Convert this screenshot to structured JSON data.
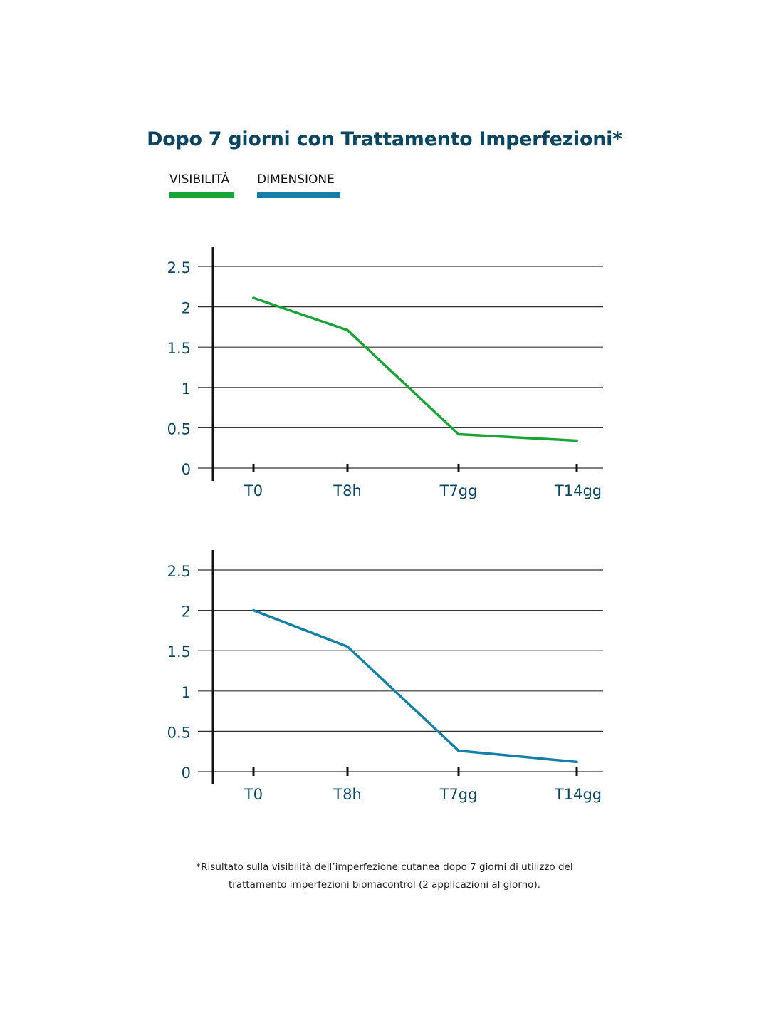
{
  "title": "Dopo 7 giorni con Trattamento Imperfezioni*",
  "colors": {
    "title": "#0b4660",
    "axis_text": "#0b4660",
    "visibility": "#1aa336",
    "dimension": "#1580a6",
    "axis": "#111111",
    "grid": "#333333"
  },
  "legend": [
    {
      "label": "VISIBILITÀ",
      "color": "#1aa336"
    },
    {
      "label": "DIMENSIONE",
      "color": "#1580a6"
    }
  ],
  "chart_data": [
    {
      "type": "line",
      "categories": [
        "T0",
        "T8h",
        "T7gg",
        "T14gg"
      ],
      "series": [
        {
          "name": "VISIBILITÀ",
          "values": [
            2.11,
            1.71,
            0.42,
            0.34
          ]
        }
      ],
      "yticks": [
        "0",
        "0.5",
        "1",
        "1.5",
        "2",
        "2.5"
      ],
      "ylim": [
        0,
        2.5
      ],
      "grid": true
    },
    {
      "type": "line",
      "categories": [
        "T0",
        "T8h",
        "T7gg",
        "T14gg"
      ],
      "series": [
        {
          "name": "DIMENSIONE",
          "values": [
            2.0,
            1.55,
            0.26,
            0.12
          ]
        }
      ],
      "yticks": [
        "0",
        "0.5",
        "1",
        "1.5",
        "2",
        "2.5"
      ],
      "ylim": [
        0,
        2.5
      ],
      "grid": true
    }
  ],
  "footnote": {
    "line1": "*Risultato sulla visibilità dell’imperfezione cutanea dopo 7 giorni di utilizzo del",
    "line2": "trattamento imperfezioni biomacontrol (2 applicazioni al giorno)."
  }
}
